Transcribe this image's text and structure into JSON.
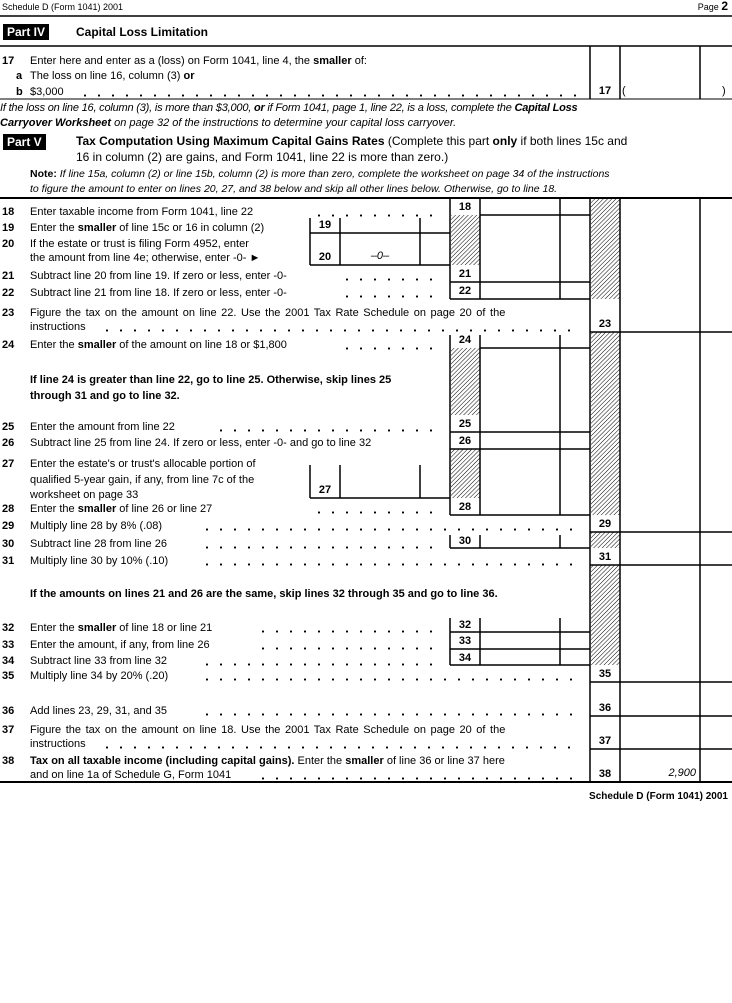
{
  "header": {
    "left": "Schedule D (Form 1041) 2001",
    "page_label": "Page",
    "page_number": "2"
  },
  "part4": {
    "badge": "Part IV",
    "title": "Capital Loss Limitation"
  },
  "line17": {
    "num": "17",
    "text_pre": "Enter here and enter as a (loss) on Form 1041, line 4, the ",
    "text_bold": "smaller",
    "text_post": " of:",
    "a_letter": "a",
    "a_text": "The loss on line 16, column (3) ",
    "a_bold": "or",
    "b_letter": "b",
    "b_text": "$3,000",
    "box": "17",
    "open_paren": "(",
    "close_paren": ")"
  },
  "loss_note": {
    "l1_pre": "If the loss on line 16, column (3), is more than $3,000, ",
    "l1_or": "or",
    "l1_mid": " if Form 1041, page 1, line 22, is a loss, complete the ",
    "l1_bold": "Capital Loss",
    "l2_bold": "Carryover Worksheet",
    "l2_post": " on page 32 of the instructions to determine your capital loss carryover."
  },
  "part5": {
    "badge": "Part V",
    "title": "Tax Computation Using Maximum Capital Gains Rates",
    "sub1_pre": " (Complete this part ",
    "sub1_bold": "only",
    "sub1_post": " if both lines 15c and",
    "sub2": "16 in column (2) are gains, and Form 1041, line 22 is more than zero.)",
    "note_label": "Note:",
    "note1": " If line 15a, column (2) or line 15b, column (2) is more than zero, complete the worksheet on page 34 of the instructions",
    "note2": "to figure the amount to enter on lines 20, 27, and 38 below and skip all other lines below. Otherwise, go to line 18."
  },
  "lines": {
    "l18": {
      "num": "18",
      "text": "Enter taxable income from Form 1041, line 22"
    },
    "l19": {
      "num": "19",
      "pre": "Enter the ",
      "bold": "smaller",
      "post": " of line 15c or 16 in column (2)"
    },
    "l20": {
      "num": "20",
      "t1": "If the estate or trust is filing Form 4952, enter",
      "t2": "the amount from line 4e; otherwise, enter -0- ►",
      "value": "–0–"
    },
    "l21": {
      "num": "21",
      "text": "Subtract line 20 from line 19. If zero or less, enter -0-"
    },
    "l22": {
      "num": "22",
      "text": "Subtract line 21 from line 18. If zero or less, enter -0-"
    },
    "l23": {
      "num": "23",
      "t1": "Figure the tax on the amount on line 22. Use the 2001 Tax Rate Schedule on page 20 of the",
      "t2": "instructions"
    },
    "l24": {
      "num": "24",
      "pre": "Enter the ",
      "bold": "smaller",
      "post": " of the amount on line 18 or $1,800"
    },
    "skip1": {
      "t1": "If line 24 is greater than line 22, go to line 25. Otherwise, skip lines 25",
      "t2": "through 31 and go to line 32."
    },
    "l25": {
      "num": "25",
      "text": "Enter the amount from line 22"
    },
    "l26": {
      "num": "26",
      "text": "Subtract line 25 from line 24. If zero or less, enter -0- and go to line 32"
    },
    "l27": {
      "num": "27",
      "t1": "Enter the estate's or trust's allocable portion of",
      "t2": "qualified 5-year gain, if any, from line 7c of the",
      "t3": "worksheet on page 33"
    },
    "l28": {
      "num": "28",
      "pre": "Enter the ",
      "bold": "smaller",
      "post": " of line 26 or line 27"
    },
    "l29": {
      "num": "29",
      "text": "Multiply line 28 by 8% (.08)"
    },
    "l30": {
      "num": "30",
      "text": "Subtract line 28 from line 26"
    },
    "l31": {
      "num": "31",
      "text": "Multiply line 30 by 10% (.10)"
    },
    "skip2": {
      "text": "If the amounts on lines 21 and 26 are the same, skip lines 32 through 35 and go to line 36."
    },
    "l32": {
      "num": "32",
      "pre": "Enter the ",
      "bold": "smaller",
      "post": " of line 18 or line 21"
    },
    "l33": {
      "num": "33",
      "text": "Enter the amount, if any, from line 26"
    },
    "l34": {
      "num": "34",
      "text": "Subtract line 33 from line 32"
    },
    "l35": {
      "num": "35",
      "text": "Multiply line 34 by 20% (.20)"
    },
    "l36": {
      "num": "36",
      "text": "Add lines 23, 29, 31, and 35"
    },
    "l37": {
      "num": "37",
      "t1": "Figure the tax on the amount on line 18. Use the 2001 Tax Rate Schedule on page 20 of the",
      "t2": "instructions"
    },
    "l38": {
      "num": "38",
      "bold1": "Tax on all taxable income (including capital gains).",
      "mid": " Enter the ",
      "bold2": "smaller",
      "post": " of line 36 or line 37 here",
      "t2": "and on line 1a of Schedule G, Form 1041",
      "value": "2,900"
    }
  },
  "footer": {
    "text": "Schedule D (Form 1041) 2001"
  }
}
